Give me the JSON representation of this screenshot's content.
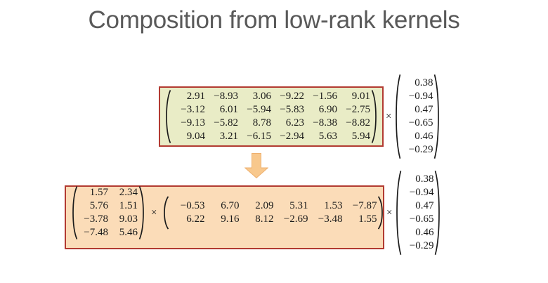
{
  "title": "Composition from low-rank kernels",
  "operators": {
    "times": "×"
  },
  "colors": {
    "box_green": "#e9ecc6",
    "box_orange": "#fbdcb8",
    "border_red": "#b23a31",
    "arrow_fill": "#f8c88d",
    "arrow_stroke": "#eeb06f",
    "title_text": "#595959",
    "math_text": "#1b1b1b"
  },
  "top_expression": {
    "kernel_matrix": {
      "rows": [
        [
          "2.91",
          "−8.93",
          "3.06",
          "−9.22",
          "−1.56",
          "9.01"
        ],
        [
          "−3.12",
          "6.01",
          "−5.94",
          "−5.83",
          "6.90",
          "−2.75"
        ],
        [
          "−9.13",
          "−5.82",
          "8.78",
          "6.23",
          "−8.38",
          "−8.82"
        ],
        [
          "9.04",
          "3.21",
          "−6.15",
          "−2.94",
          "5.63",
          "5.94"
        ]
      ]
    },
    "vector": {
      "values": [
        "0.38",
        "−0.94",
        "0.47",
        "−0.65",
        "0.46",
        "−0.29"
      ]
    }
  },
  "bottom_expression": {
    "left_factor": {
      "rows": [
        [
          "1.57",
          "2.34"
        ],
        [
          "5.76",
          "1.51"
        ],
        [
          "−3.78",
          "9.03"
        ],
        [
          "−7.48",
          "5.46"
        ]
      ]
    },
    "right_factor": {
      "rows": [
        [
          "−0.53",
          "6.70",
          "2.09",
          "5.31",
          "1.53",
          "−7.87"
        ],
        [
          "6.22",
          "9.16",
          "8.12",
          "−2.69",
          "−3.48",
          "1.55"
        ]
      ]
    },
    "vector": {
      "values": [
        "0.38",
        "−0.94",
        "0.47",
        "−0.65",
        "0.46",
        "−0.29"
      ]
    }
  }
}
